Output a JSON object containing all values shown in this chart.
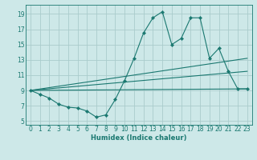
{
  "bg_color": "#cde8e8",
  "grid_color": "#aacccc",
  "line_color": "#1a7870",
  "xlabel": "Humidex (Indice chaleur)",
  "xlim": [
    -0.5,
    23.5
  ],
  "ylim": [
    4.5,
    20.2
  ],
  "xticks": [
    0,
    1,
    2,
    3,
    4,
    5,
    6,
    7,
    8,
    9,
    10,
    11,
    12,
    13,
    14,
    15,
    16,
    17,
    18,
    19,
    20,
    21,
    22,
    23
  ],
  "yticks": [
    5,
    7,
    9,
    11,
    13,
    15,
    17,
    19
  ],
  "main_x": [
    0,
    1,
    2,
    3,
    4,
    5,
    6,
    7,
    8,
    9,
    10,
    11,
    12,
    13,
    14,
    15,
    16,
    17,
    18,
    19,
    20,
    21,
    22,
    23
  ],
  "main_y": [
    9.0,
    8.5,
    8.0,
    7.2,
    6.8,
    6.7,
    6.3,
    5.5,
    5.8,
    7.8,
    10.3,
    13.2,
    16.5,
    18.5,
    19.3,
    15.0,
    15.8,
    18.5,
    18.5,
    13.2,
    14.5,
    11.5,
    9.2,
    9.2
  ],
  "trend1_x": [
    0,
    23
  ],
  "trend1_y": [
    9.0,
    13.2
  ],
  "trend2_x": [
    0,
    23
  ],
  "trend2_y": [
    9.0,
    11.5
  ],
  "trend3_x": [
    0,
    23
  ],
  "trend3_y": [
    9.0,
    9.2
  ]
}
